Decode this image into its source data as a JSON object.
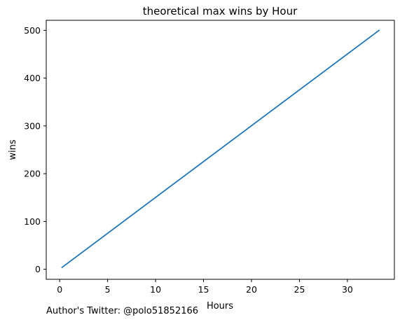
{
  "chart_data": {
    "type": "line",
    "title": "theoretical max wins by Hour",
    "xlabel": "Hours",
    "ylabel": "wins",
    "xlim": [
      -1.4,
      34.9
    ],
    "ylim": [
      -21,
      521
    ],
    "xticks": [
      0,
      5,
      10,
      15,
      20,
      25,
      30
    ],
    "yticks": [
      0,
      100,
      200,
      300,
      400,
      500
    ],
    "grid": false,
    "series": [
      {
        "color": "#1f77b4",
        "x": [
          0.25,
          33.3
        ],
        "y": [
          4,
          500
        ]
      }
    ],
    "footnote": "Author's Twitter: @polo51852166"
  }
}
